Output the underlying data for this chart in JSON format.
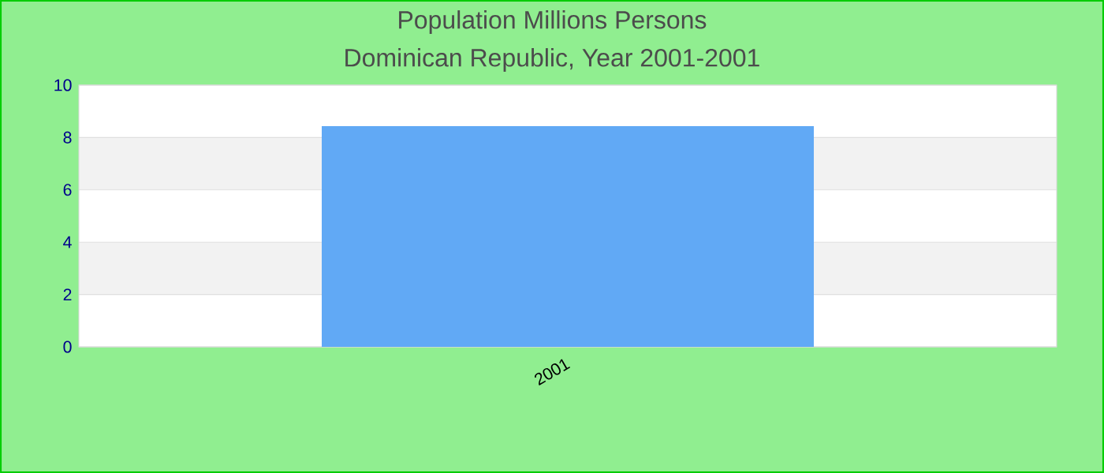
{
  "chart_data": {
    "type": "bar",
    "title": "Population Millions Persons",
    "subtitle": "Dominican Republic, Year 2001-2001",
    "categories": [
      "2001"
    ],
    "values": [
      8.43
    ],
    "color": "#61a9f5",
    "ylim": [
      0,
      10
    ],
    "yticks": [
      {
        "value": 0,
        "label": "0"
      },
      {
        "value": 2,
        "label": "2"
      },
      {
        "value": 4,
        "label": "4"
      },
      {
        "value": 6,
        "label": "6"
      },
      {
        "value": 8,
        "label": "8"
      },
      {
        "value": 10,
        "label": "10"
      }
    ],
    "grid": "y"
  }
}
